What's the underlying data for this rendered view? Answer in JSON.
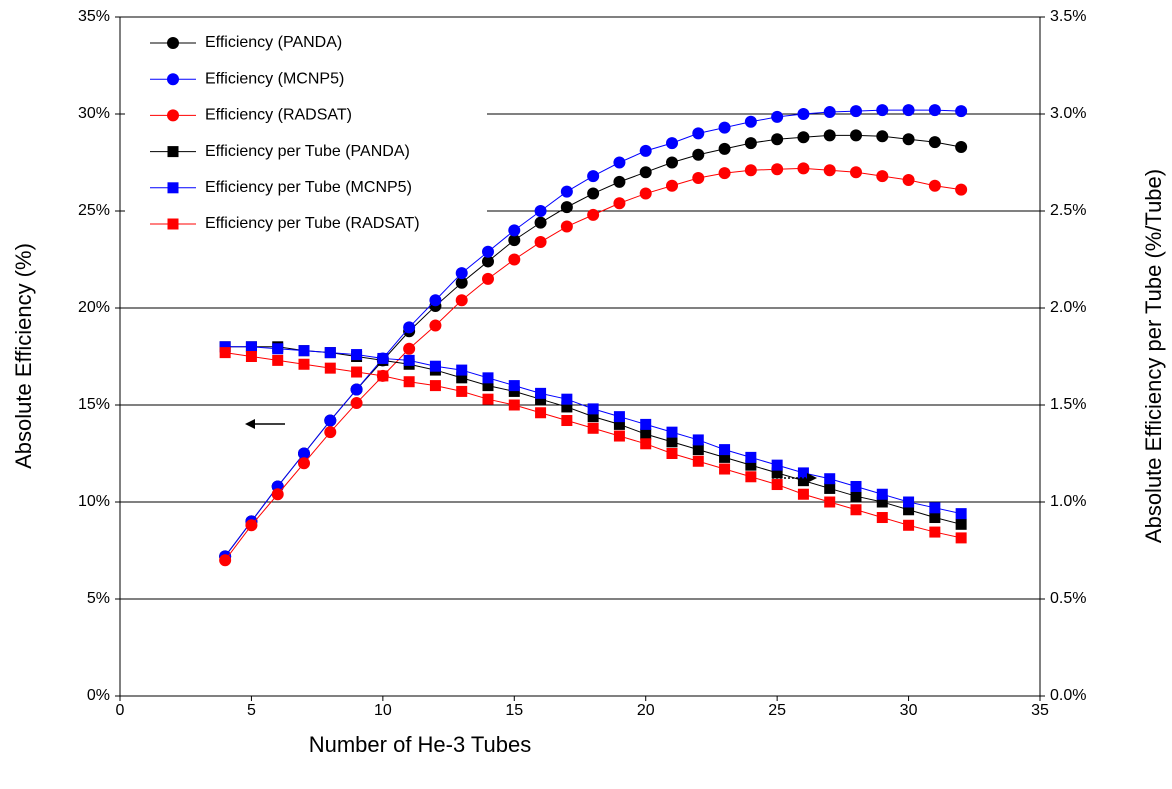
{
  "chart_data": {
    "type": "line",
    "xlabel": "Number of He-3 Tubes",
    "ylabel": "Absolute Efficiency (%)",
    "y2label": "Absolute Efficiency per Tube (%/Tube)",
    "x": [
      4,
      5,
      6,
      7,
      8,
      9,
      10,
      11,
      12,
      13,
      14,
      15,
      16,
      17,
      18,
      19,
      20,
      21,
      22,
      23,
      24,
      25,
      26,
      27,
      28,
      29,
      30,
      31,
      32
    ],
    "xlim": [
      0,
      35
    ],
    "xticks": [
      0,
      5,
      10,
      15,
      20,
      25,
      30,
      35
    ],
    "ylim": [
      0,
      35
    ],
    "yticks": [
      {
        "value": 0,
        "label": "0%"
      },
      {
        "value": 5,
        "label": "5%"
      },
      {
        "value": 10,
        "label": "10%"
      },
      {
        "value": 15,
        "label": "15%"
      },
      {
        "value": 20,
        "label": "20%"
      },
      {
        "value": 25,
        "label": "25%"
      },
      {
        "value": 30,
        "label": "30%"
      },
      {
        "value": 35,
        "label": "35%"
      }
    ],
    "y2lim": [
      0,
      3.5
    ],
    "y2ticks": [
      {
        "value": 0,
        "label": "0.0%"
      },
      {
        "value": 0.5,
        "label": "0.5%"
      },
      {
        "value": 1,
        "label": "1.0%"
      },
      {
        "value": 1.5,
        "label": "1.5%"
      },
      {
        "value": 2,
        "label": "2.0%"
      },
      {
        "value": 2.5,
        "label": "2.5%"
      },
      {
        "value": 3,
        "label": "3.0%"
      },
      {
        "value": 3.5,
        "label": "3.5%"
      }
    ],
    "grid": true,
    "legend": "upper left",
    "series": [
      {
        "name": "Efficiency (PANDA)",
        "color": "#000000",
        "marker": "circle",
        "values": [
          7.2,
          9.0,
          10.8,
          12.5,
          14.2,
          15.8,
          17.3,
          18.8,
          20.1,
          21.3,
          22.4,
          23.5,
          24.4,
          25.2,
          25.9,
          26.5,
          27.0,
          27.5,
          27.9,
          28.2,
          28.5,
          28.7,
          28.8,
          28.9,
          28.9,
          28.85,
          28.7,
          28.55,
          28.3
        ]
      },
      {
        "name": "Efficiency (MCNP5)",
        "color": "#0000ff",
        "marker": "circle",
        "values": [
          7.2,
          9.0,
          10.8,
          12.5,
          14.2,
          15.8,
          17.4,
          19.0,
          20.4,
          21.8,
          22.9,
          24.0,
          25.0,
          26.0,
          26.8,
          27.5,
          28.1,
          28.5,
          29.0,
          29.3,
          29.6,
          29.85,
          30.0,
          30.1,
          30.15,
          30.2,
          30.2,
          30.2,
          30.15
        ]
      },
      {
        "name": "Efficiency (RADSAT)",
        "color": "#ff0000",
        "marker": "circle",
        "values": [
          7.0,
          8.8,
          10.4,
          12.0,
          13.6,
          15.1,
          16.5,
          17.9,
          19.1,
          20.4,
          21.5,
          22.5,
          23.4,
          24.2,
          24.8,
          25.4,
          25.9,
          26.3,
          26.7,
          26.95,
          27.1,
          27.15,
          27.2,
          27.1,
          27.0,
          26.8,
          26.6,
          26.3,
          26.1
        ]
      },
      {
        "name": "Efficiency per Tube (PANDA)",
        "color": "#000000",
        "marker": "square",
        "axis": "y2",
        "values": [
          1.8,
          1.8,
          1.8,
          1.78,
          1.77,
          1.75,
          1.73,
          1.71,
          1.68,
          1.64,
          1.6,
          1.57,
          1.53,
          1.49,
          1.44,
          1.4,
          1.35,
          1.31,
          1.27,
          1.23,
          1.19,
          1.15,
          1.11,
          1.07,
          1.03,
          1.0,
          0.96,
          0.92,
          0.885
        ]
      },
      {
        "name": "Efficiency per Tube (MCNP5)",
        "color": "#0000ff",
        "marker": "square",
        "axis": "y2",
        "values": [
          1.8,
          1.8,
          1.79,
          1.78,
          1.77,
          1.76,
          1.74,
          1.73,
          1.7,
          1.68,
          1.64,
          1.6,
          1.56,
          1.53,
          1.48,
          1.44,
          1.4,
          1.36,
          1.32,
          1.27,
          1.23,
          1.19,
          1.15,
          1.12,
          1.08,
          1.04,
          1.0,
          0.97,
          0.94
        ]
      },
      {
        "name": "Efficiency per Tube (RADSAT)",
        "color": "#ff0000",
        "marker": "square",
        "axis": "y2",
        "values": [
          1.77,
          1.75,
          1.73,
          1.71,
          1.69,
          1.67,
          1.65,
          1.62,
          1.6,
          1.57,
          1.53,
          1.5,
          1.46,
          1.42,
          1.38,
          1.34,
          1.3,
          1.25,
          1.21,
          1.17,
          1.13,
          1.09,
          1.04,
          1.0,
          0.96,
          0.92,
          0.88,
          0.845,
          0.815
        ]
      }
    ]
  }
}
